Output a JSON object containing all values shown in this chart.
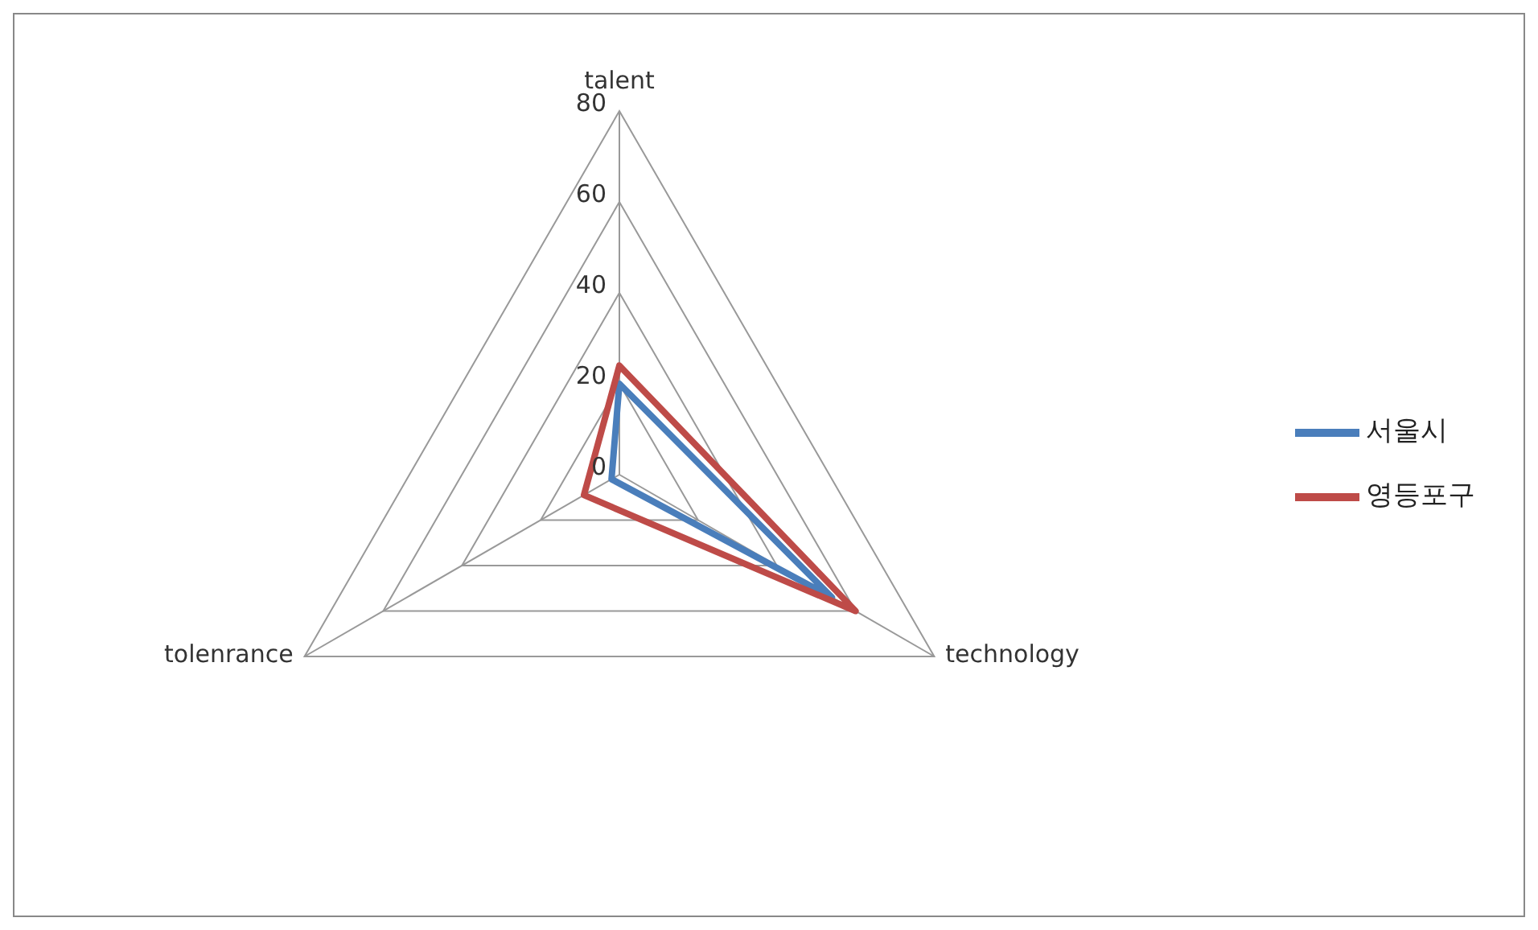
{
  "chart_data": {
    "type": "radar",
    "categories": [
      "talent",
      "technology",
      "tolenrance"
    ],
    "series": [
      {
        "name": "서울시",
        "color": "#4a7ebb",
        "values": [
          20,
          54,
          2
        ]
      },
      {
        "name": "영등포구",
        "color": "#be4b48",
        "values": [
          24,
          60,
          9
        ]
      }
    ],
    "ylim": [
      0,
      80
    ],
    "yticks": [
      0,
      20,
      40,
      60,
      80
    ],
    "grid": true,
    "legend": "right",
    "marker": "none"
  }
}
